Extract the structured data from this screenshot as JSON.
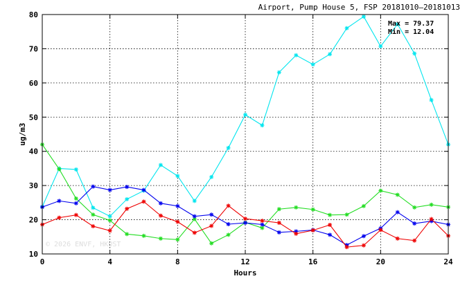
{
  "chart_data": {
    "type": "line",
    "title": "Airport, Pump House 5, FSP 20181010–20181013",
    "xlabel": "Hours",
    "ylabel": "ug/m3",
    "xlim": [
      0,
      24
    ],
    "ylim": [
      10,
      80
    ],
    "x_ticks": [
      0,
      4,
      8,
      12,
      16,
      20,
      24
    ],
    "y_ticks": [
      10,
      20,
      30,
      40,
      50,
      60,
      70,
      80
    ],
    "grid": true,
    "stats": [
      "Max = 79.37",
      "Min = 12.04"
    ],
    "watermark": "© 2026  ENVF, HKUST",
    "x": [
      0,
      1,
      2,
      3,
      4,
      5,
      6,
      7,
      8,
      9,
      10,
      11,
      12,
      13,
      14,
      15,
      16,
      17,
      18,
      19,
      20,
      21,
      22,
      23,
      24
    ],
    "series": [
      {
        "color": "#00e5ee",
        "values": [
          23.8,
          35.0,
          34.7,
          23.5,
          21.0,
          26.0,
          28.5,
          36.0,
          32.8,
          25.5,
          32.5,
          41.0,
          50.7,
          47.6,
          63.1,
          68.1,
          65.4,
          68.4,
          76.0,
          79.4,
          70.7,
          77.2,
          68.6,
          55.0,
          42.0
        ]
      },
      {
        "color": "#22dd22",
        "values": [
          42.0,
          34.8,
          26.2,
          21.5,
          19.8,
          15.8,
          15.3,
          14.5,
          14.2,
          20.2,
          13.1,
          15.6,
          19.2,
          17.6,
          23.1,
          23.6,
          23.0,
          21.4,
          21.5,
          24.0,
          28.5,
          27.3,
          23.6,
          24.4,
          23.7
        ]
      },
      {
        "color": "#0000ee",
        "values": [
          23.7,
          25.5,
          24.8,
          29.7,
          28.7,
          29.6,
          28.7,
          24.8,
          24.0,
          21.0,
          21.5,
          18.7,
          19.1,
          18.6,
          16.3,
          16.6,
          17.0,
          15.6,
          12.6,
          15.2,
          17.5,
          22.2,
          18.9,
          19.6,
          18.6
        ]
      },
      {
        "color": "#ee0000",
        "values": [
          18.6,
          20.6,
          21.4,
          18.1,
          16.8,
          23.2,
          25.3,
          21.2,
          19.4,
          16.2,
          18.2,
          24.1,
          20.3,
          19.7,
          19.1,
          15.9,
          16.9,
          18.5,
          12.0,
          12.5,
          17.0,
          14.5,
          13.9,
          20.2,
          15.3
        ]
      }
    ]
  }
}
